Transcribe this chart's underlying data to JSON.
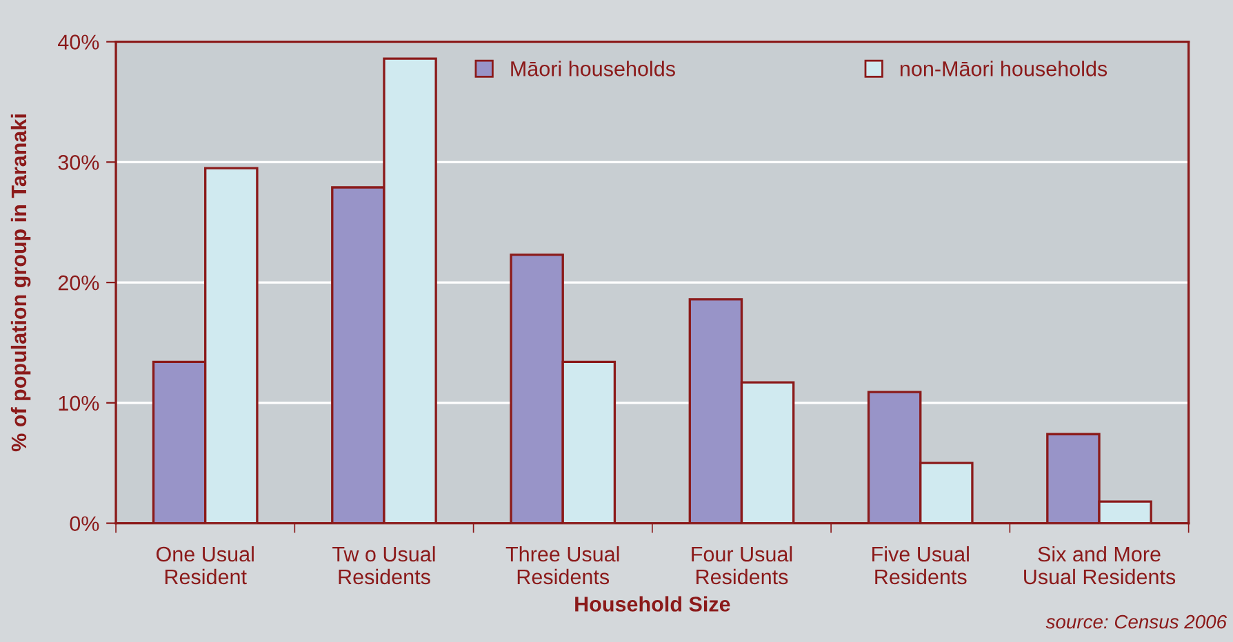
{
  "chart_data": {
    "type": "bar",
    "xlabel": "Household Size",
    "ylabel": "% of population group in Taranaki",
    "categories": [
      "One Usual\nResident",
      "Tw o Usual\nResidents",
      "Three Usual\nResidents",
      "Four Usual\nResidents",
      "Five Usual\nResidents",
      "Six and More\nUsual Residents"
    ],
    "series": [
      {
        "name": "Māori households",
        "color": "#9894c8",
        "values": [
          13.4,
          27.9,
          22.3,
          18.6,
          10.9,
          7.4
        ]
      },
      {
        "name": "non-Māori households",
        "color": "#d0eaf0",
        "values": [
          29.5,
          38.6,
          13.4,
          11.7,
          5.0,
          1.8
        ]
      }
    ],
    "ylim": [
      0,
      40
    ],
    "yticks": [
      {
        "value": 0,
        "label": "0%"
      },
      {
        "value": 10,
        "label": "10%"
      },
      {
        "value": 20,
        "label": "20%"
      },
      {
        "value": 30,
        "label": "30%"
      },
      {
        "value": 40,
        "label": "40%"
      }
    ],
    "grid": "y",
    "legend": "top",
    "annotations": [
      "source: Census 2006"
    ]
  }
}
